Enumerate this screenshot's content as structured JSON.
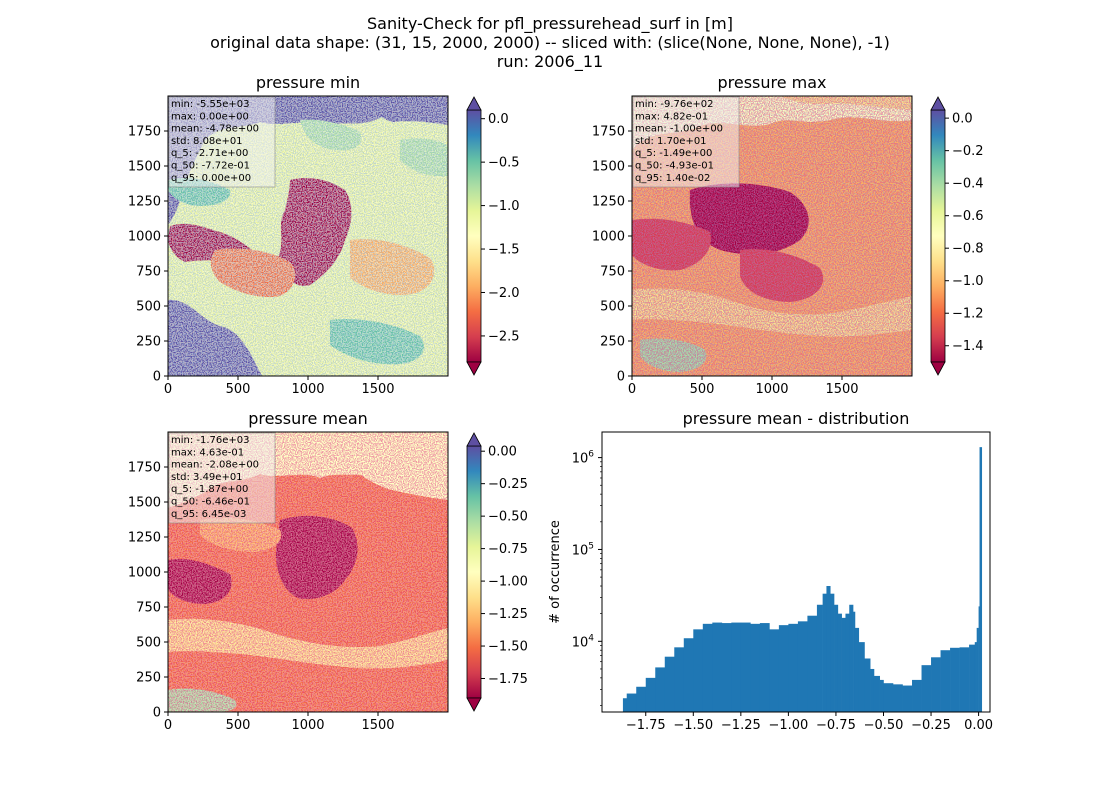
{
  "figure": {
    "title_lines": [
      "Sanity-Check for pfl_pressurehead_surf in [m]",
      "original data shape: (31, 15, 2000, 2000) -- sliced with: (slice(None, None, None), -1)",
      "run: 2006_11"
    ]
  },
  "chart_data": [
    {
      "type": "heatmap",
      "title": "pressure min",
      "xlabel": "",
      "ylabel": "",
      "xticks": [
        0,
        500,
        1000,
        1500
      ],
      "yticks": [
        0,
        250,
        500,
        750,
        1000,
        1250,
        1500,
        1750
      ],
      "xlim": [
        0,
        2000
      ],
      "ylim": [
        0,
        2000
      ],
      "colormap": "Spectral",
      "color_range": [
        -2.8,
        0.1
      ],
      "colorbar_ticks": [
        0.0,
        -0.5,
        -1.0,
        -1.5,
        -2.0,
        -2.5
      ],
      "colorbar_ticklabels": [
        "0.0",
        "−0.5",
        "−1.0",
        "−1.5",
        "−2.0",
        "−2.5"
      ],
      "colorbar_extend": "both",
      "stats": [
        "min: -5.55e+03",
        "max: 0.00e+00",
        "mean: -4.78e+00",
        "std: 8.08e+01",
        "q_5: -2.71e+00",
        "q_50: -7.72e-01",
        "q_95: 0.00e+00"
      ]
    },
    {
      "type": "heatmap",
      "title": "pressure max",
      "xlabel": "",
      "ylabel": "",
      "xticks": [
        0,
        500,
        1000,
        1500
      ],
      "yticks": [
        0,
        250,
        500,
        750,
        1000,
        1250,
        1500,
        1750
      ],
      "xlim": [
        0,
        2000
      ],
      "ylim": [
        0,
        2000
      ],
      "colormap": "Spectral",
      "color_range": [
        -1.5,
        0.05
      ],
      "colorbar_ticks": [
        0.0,
        -0.2,
        -0.4,
        -0.6,
        -0.8,
        -1.0,
        -1.2,
        -1.4
      ],
      "colorbar_ticklabels": [
        "0.0",
        "−0.2",
        "−0.4",
        "−0.6",
        "−0.8",
        "−1.0",
        "−1.2",
        "−1.4"
      ],
      "colorbar_extend": "both",
      "stats": [
        "min: -9.76e+02",
        "max: 4.82e-01",
        "mean: -1.00e+00",
        "std: 1.70e+01",
        "q_5: -1.49e+00",
        "q_50: -4.93e-01",
        "q_95: 1.40e-02"
      ]
    },
    {
      "type": "heatmap",
      "title": "pressure mean",
      "xlabel": "",
      "ylabel": "",
      "xticks": [
        0,
        500,
        1000,
        1500
      ],
      "yticks": [
        0,
        250,
        500,
        750,
        1000,
        1250,
        1500,
        1750
      ],
      "xlim": [
        0,
        2000
      ],
      "ylim": [
        0,
        2000
      ],
      "colormap": "Spectral",
      "color_range": [
        -1.9,
        0.04
      ],
      "colorbar_ticks": [
        0.0,
        -0.25,
        -0.5,
        -0.75,
        -1.0,
        -1.25,
        -1.5,
        -1.75
      ],
      "colorbar_ticklabels": [
        "0.00",
        "−0.25",
        "−0.50",
        "−0.75",
        "−1.00",
        "−1.25",
        "−1.50",
        "−1.75"
      ],
      "colorbar_extend": "both",
      "stats": [
        "min: -1.76e+03",
        "max: 4.63e-01",
        "mean: -2.08e+00",
        "std: 3.49e+01",
        "q_5: -1.87e+00",
        "q_50: -6.46e-01",
        "q_95: 6.45e-03"
      ]
    },
    {
      "type": "bar",
      "title": "pressure mean - distribution",
      "xlabel": "",
      "ylabel": "# of occurrence",
      "yscale": "log",
      "bar_color": "#1f77b4",
      "xlim": [
        -1.98,
        0.06
      ],
      "ylim": [
        1700,
        1900000
      ],
      "xticks": [
        -1.75,
        -1.5,
        -1.25,
        -1.0,
        -0.75,
        -0.5,
        -0.25,
        0.0
      ],
      "xticklabels": [
        "−1.75",
        "−1.50",
        "−1.25",
        "−1.00",
        "−0.75",
        "−0.50",
        "−0.25",
        "0.00"
      ],
      "yticks": [
        10000,
        100000,
        1000000
      ],
      "yticklabels": [
        "10^4",
        "10^5",
        "10^6"
      ],
      "x": [
        -1.87,
        -1.85,
        -1.8,
        -1.75,
        -1.7,
        -1.65,
        -1.6,
        -1.55,
        -1.5,
        -1.45,
        -1.4,
        -1.35,
        -1.3,
        -1.25,
        -1.2,
        -1.15,
        -1.1,
        -1.05,
        -1.0,
        -0.95,
        -0.9,
        -0.85,
        -0.82,
        -0.8,
        -0.78,
        -0.76,
        -0.74,
        -0.72,
        -0.7,
        -0.68,
        -0.66,
        -0.65,
        -0.63,
        -0.6,
        -0.57,
        -0.55,
        -0.52,
        -0.5,
        -0.45,
        -0.4,
        -0.35,
        -0.3,
        -0.25,
        -0.2,
        -0.15,
        -0.1,
        -0.05,
        -0.02,
        -0.01,
        0.0,
        0.005
      ],
      "values": [
        2400,
        2700,
        3200,
        4000,
        5200,
        6800,
        8600,
        10800,
        13500,
        15500,
        16000,
        15800,
        16000,
        16000,
        15500,
        15800,
        13500,
        15000,
        15500,
        16500,
        19000,
        25000,
        33000,
        40000,
        33000,
        25000,
        20000,
        18000,
        20000,
        25000,
        21000,
        14000,
        9800,
        6500,
        5000,
        4200,
        3800,
        3500,
        3400,
        3300,
        3800,
        5500,
        6700,
        8000,
        8500,
        8600,
        9200,
        9800,
        14000,
        24000,
        1300000
      ]
    }
  ]
}
